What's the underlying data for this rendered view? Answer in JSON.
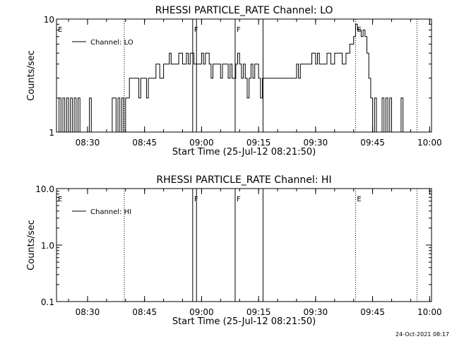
{
  "footer_stamp": "24-Oct-2021 08:17",
  "chart_data": [
    {
      "type": "line",
      "title": "RHESSI PARTICLE_RATE Channel: LO",
      "xlabel": "Start Time (25-Jul-12 08:21:50)",
      "ylabel": "Counts/sec",
      "yscale": "log",
      "ylim": [
        1,
        10
      ],
      "xlim": [
        "08:21:50",
        "10:00:30"
      ],
      "x_ticks": [
        "08:30",
        "08:45",
        "09:00",
        "09:15",
        "09:30",
        "09:45",
        "10:00"
      ],
      "y_ticks": [
        "1",
        "10"
      ],
      "legend": "top-left",
      "series": [
        {
          "name": "Channel: LO",
          "points": [
            [
              "08:22:00",
              1
            ],
            [
              "08:22:30",
              2
            ],
            [
              "08:23:00",
              1
            ],
            [
              "08:23:30",
              2
            ],
            [
              "08:24:00",
              1
            ],
            [
              "08:24:30",
              2
            ],
            [
              "08:25:00",
              1
            ],
            [
              "08:25:30",
              2
            ],
            [
              "08:26:00",
              1
            ],
            [
              "08:26:30",
              2
            ],
            [
              "08:27:00",
              1
            ],
            [
              "08:27:30",
              2
            ],
            [
              "08:28:00",
              1
            ],
            [
              "08:29:00",
              1
            ],
            [
              "08:30:00",
              1
            ],
            [
              "08:30:30",
              2
            ],
            [
              "08:31:00",
              1
            ],
            [
              "08:31:30",
              1
            ],
            [
              "08:32:00",
              1
            ],
            [
              "08:32:30",
              1
            ],
            [
              "08:33:00",
              1
            ],
            [
              "08:34:00",
              1
            ],
            [
              "08:35:00",
              1
            ],
            [
              "08:36:00",
              1
            ],
            [
              "08:36:30",
              2
            ],
            [
              "08:37:00",
              2
            ],
            [
              "08:37:30",
              1
            ],
            [
              "08:38:00",
              2
            ],
            [
              "08:38:30",
              1
            ],
            [
              "08:39:00",
              2
            ],
            [
              "08:39:30",
              1
            ],
            [
              "08:40:00",
              2
            ],
            [
              "08:40:30",
              2
            ],
            [
              "08:41:00",
              3
            ],
            [
              "08:42:00",
              3
            ],
            [
              "08:43:00",
              3
            ],
            [
              "08:43:30",
              2
            ],
            [
              "08:44:00",
              3
            ],
            [
              "08:45:00",
              3
            ],
            [
              "08:45:30",
              2
            ],
            [
              "08:46:00",
              3
            ],
            [
              "08:47:00",
              3
            ],
            [
              "08:48:00",
              4
            ],
            [
              "08:49:00",
              3
            ],
            [
              "08:50:00",
              4
            ],
            [
              "08:51:00",
              4
            ],
            [
              "08:51:30",
              5
            ],
            [
              "08:52:00",
              4
            ],
            [
              "08:53:00",
              4
            ],
            [
              "08:54:00",
              5
            ],
            [
              "08:55:00",
              4
            ],
            [
              "08:56:00",
              5
            ],
            [
              "08:56:30",
              4
            ],
            [
              "08:57:00",
              5
            ],
            [
              "08:58:00",
              4
            ],
            [
              "08:59:00",
              4
            ],
            [
              "09:00:00",
              5
            ],
            [
              "09:00:30",
              4
            ],
            [
              "09:01:00",
              5
            ],
            [
              "09:02:00",
              4
            ],
            [
              "09:02:30",
              3
            ],
            [
              "09:03:00",
              4
            ],
            [
              "09:04:00",
              4
            ],
            [
              "09:05:00",
              3
            ],
            [
              "09:05:30",
              4
            ],
            [
              "09:06:00",
              4
            ],
            [
              "09:07:00",
              3
            ],
            [
              "09:07:30",
              4
            ],
            [
              "09:08:00",
              3
            ],
            [
              "09:09:00",
              4
            ],
            [
              "09:09:30",
              5
            ],
            [
              "09:10:00",
              4
            ],
            [
              "09:10:30",
              3
            ],
            [
              "09:11:00",
              4
            ],
            [
              "09:11:30",
              3
            ],
            [
              "09:12:00",
              2
            ],
            [
              "09:12:30",
              3
            ],
            [
              "09:13:00",
              4
            ],
            [
              "09:13:30",
              3
            ],
            [
              "09:14:00",
              4
            ],
            [
              "09:15:00",
              3
            ],
            [
              "09:15:30",
              2
            ],
            [
              "09:16:00",
              3
            ],
            [
              "09:17:00",
              3
            ],
            [
              "09:18:00",
              3
            ],
            [
              "09:19:00",
              3
            ],
            [
              "09:20:00",
              3
            ],
            [
              "09:21:00",
              3
            ],
            [
              "09:22:00",
              3
            ],
            [
              "09:23:00",
              3
            ],
            [
              "09:24:00",
              3
            ],
            [
              "09:25:00",
              4
            ],
            [
              "09:25:30",
              3
            ],
            [
              "09:26:00",
              4
            ],
            [
              "09:27:00",
              4
            ],
            [
              "09:28:00",
              4
            ],
            [
              "09:29:00",
              5
            ],
            [
              "09:30:00",
              4
            ],
            [
              "09:30:30",
              5
            ],
            [
              "09:31:00",
              4
            ],
            [
              "09:32:00",
              4
            ],
            [
              "09:33:00",
              5
            ],
            [
              "09:34:00",
              4
            ],
            [
              "09:35:00",
              5
            ],
            [
              "09:36:00",
              5
            ],
            [
              "09:37:00",
              4
            ],
            [
              "09:38:00",
              5
            ],
            [
              "09:39:00",
              6
            ],
            [
              "09:40:00",
              7
            ],
            [
              "09:40:30",
              9
            ],
            [
              "09:41:00",
              8
            ],
            [
              "09:42:00",
              7
            ],
            [
              "09:42:30",
              8
            ],
            [
              "09:43:00",
              7
            ],
            [
              "09:43:30",
              5
            ],
            [
              "09:44:00",
              3
            ],
            [
              "09:44:30",
              2
            ],
            [
              "09:45:00",
              1
            ],
            [
              "09:45:30",
              2
            ],
            [
              "09:46:00",
              1
            ],
            [
              "09:47:00",
              1
            ],
            [
              "09:47:30",
              2
            ],
            [
              "09:48:00",
              1
            ],
            [
              "09:48:30",
              2
            ],
            [
              "09:49:00",
              1
            ],
            [
              "09:49:30",
              2
            ],
            [
              "09:50:00",
              1
            ],
            [
              "09:51:00",
              1
            ],
            [
              "09:52:00",
              1
            ],
            [
              "09:52:30",
              2
            ],
            [
              "09:53:00",
              1
            ],
            [
              "09:54:00",
              1
            ]
          ]
        }
      ],
      "markers": [
        {
          "label": "E",
          "time": "08:21:50",
          "style": "none"
        },
        {
          "label": "",
          "time": "08:39:40",
          "style": "dotted"
        },
        {
          "label": "F",
          "time": "08:57:40",
          "style": "solid"
        },
        {
          "label": "",
          "time": "08:58:40",
          "style": "solid"
        },
        {
          "label": "F",
          "time": "09:08:50",
          "style": "solid"
        },
        {
          "label": "",
          "time": "09:16:10",
          "style": "solid"
        },
        {
          "label": "E",
          "time": "09:40:30",
          "style": "dotted"
        },
        {
          "label": "",
          "time": "09:56:40",
          "style": "dotted"
        }
      ]
    },
    {
      "type": "line",
      "title": "RHESSI PARTICLE_RATE Channel: HI",
      "xlabel": "Start Time (25-Jul-12 08:21:50)",
      "ylabel": "Counts/sec",
      "yscale": "log",
      "ylim": [
        0.1,
        10
      ],
      "xlim": [
        "08:21:50",
        "10:00:30"
      ],
      "x_ticks": [
        "08:30",
        "08:45",
        "09:00",
        "09:15",
        "09:30",
        "09:45",
        "10:00"
      ],
      "y_ticks": [
        "0.1",
        "1.0",
        "10.0"
      ],
      "legend": "top-left",
      "series": [
        {
          "name": "Channel: HI",
          "points": []
        }
      ],
      "markers": [
        {
          "label": "E",
          "time": "08:21:50",
          "style": "none"
        },
        {
          "label": "",
          "time": "08:39:40",
          "style": "dotted"
        },
        {
          "label": "F",
          "time": "08:57:40",
          "style": "solid"
        },
        {
          "label": "",
          "time": "08:58:40",
          "style": "solid"
        },
        {
          "label": "F",
          "time": "09:08:50",
          "style": "solid"
        },
        {
          "label": "",
          "time": "09:16:10",
          "style": "solid"
        },
        {
          "label": "E",
          "time": "09:40:30",
          "style": "dotted"
        },
        {
          "label": "",
          "time": "09:56:40",
          "style": "dotted"
        }
      ]
    }
  ]
}
